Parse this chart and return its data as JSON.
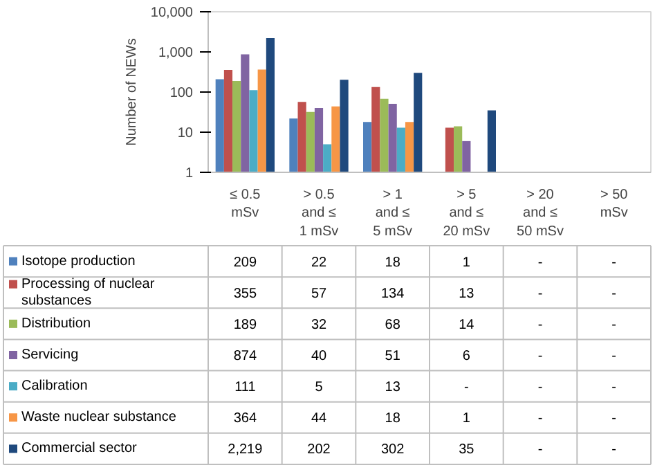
{
  "chart_data": {
    "type": "bar",
    "ylabel": "Number of NEWs",
    "log": true,
    "ylim": [
      1,
      10000
    ],
    "yticks": [
      1,
      10,
      100,
      {
        "value": 1000,
        "label": "1,000"
      },
      {
        "value": 10000,
        "label": "10,000"
      }
    ],
    "categories": [
      "≤ 0.5 mSv",
      "> 0.5 and ≤ 1 mSv",
      "> 1 and ≤ 5 mSv",
      "> 5 and ≤ 20 mSv",
      "> 20 and ≤ 50 mSv",
      "> 50 mSv"
    ],
    "legend": "bottom",
    "series": [
      {
        "name": "Isotope production",
        "color": "#4f81bd",
        "values": [
          209,
          22,
          18,
          1,
          null,
          null
        ],
        "value_labels": [
          "209",
          "22",
          "18",
          "1",
          "-",
          "-"
        ]
      },
      {
        "name": "Processing of nuclear substances",
        "color": "#c0504d",
        "values": [
          355,
          57,
          134,
          13,
          null,
          null
        ],
        "value_labels": [
          "355",
          "57",
          "134",
          "13",
          "-",
          "-"
        ]
      },
      {
        "name": "Distribution",
        "color": "#9bbb59",
        "values": [
          189,
          32,
          68,
          14,
          null,
          null
        ],
        "value_labels": [
          "189",
          "32",
          "68",
          "14",
          "-",
          "-"
        ]
      },
      {
        "name": "Servicing",
        "color": "#8064a2",
        "values": [
          874,
          40,
          51,
          6,
          null,
          null
        ],
        "value_labels": [
          "874",
          "40",
          "51",
          "6",
          "-",
          "-"
        ]
      },
      {
        "name": "Calibration",
        "color": "#4bacc6",
        "values": [
          111,
          5,
          13,
          null,
          null,
          null
        ],
        "value_labels": [
          "111",
          "5",
          "13",
          "-",
          "-",
          "-"
        ]
      },
      {
        "name": "Waste nuclear substance",
        "color": "#f79646",
        "values": [
          364,
          44,
          18,
          1,
          null,
          null
        ],
        "value_labels": [
          "364",
          "44",
          "18",
          "1",
          "-",
          "-"
        ]
      },
      {
        "name": "Commercial sector",
        "color": "#1f497d",
        "values": [
          2219,
          202,
          302,
          35,
          null,
          null
        ],
        "value_labels": [
          "2,219",
          "202",
          "302",
          "35",
          "-",
          "-"
        ]
      }
    ]
  }
}
